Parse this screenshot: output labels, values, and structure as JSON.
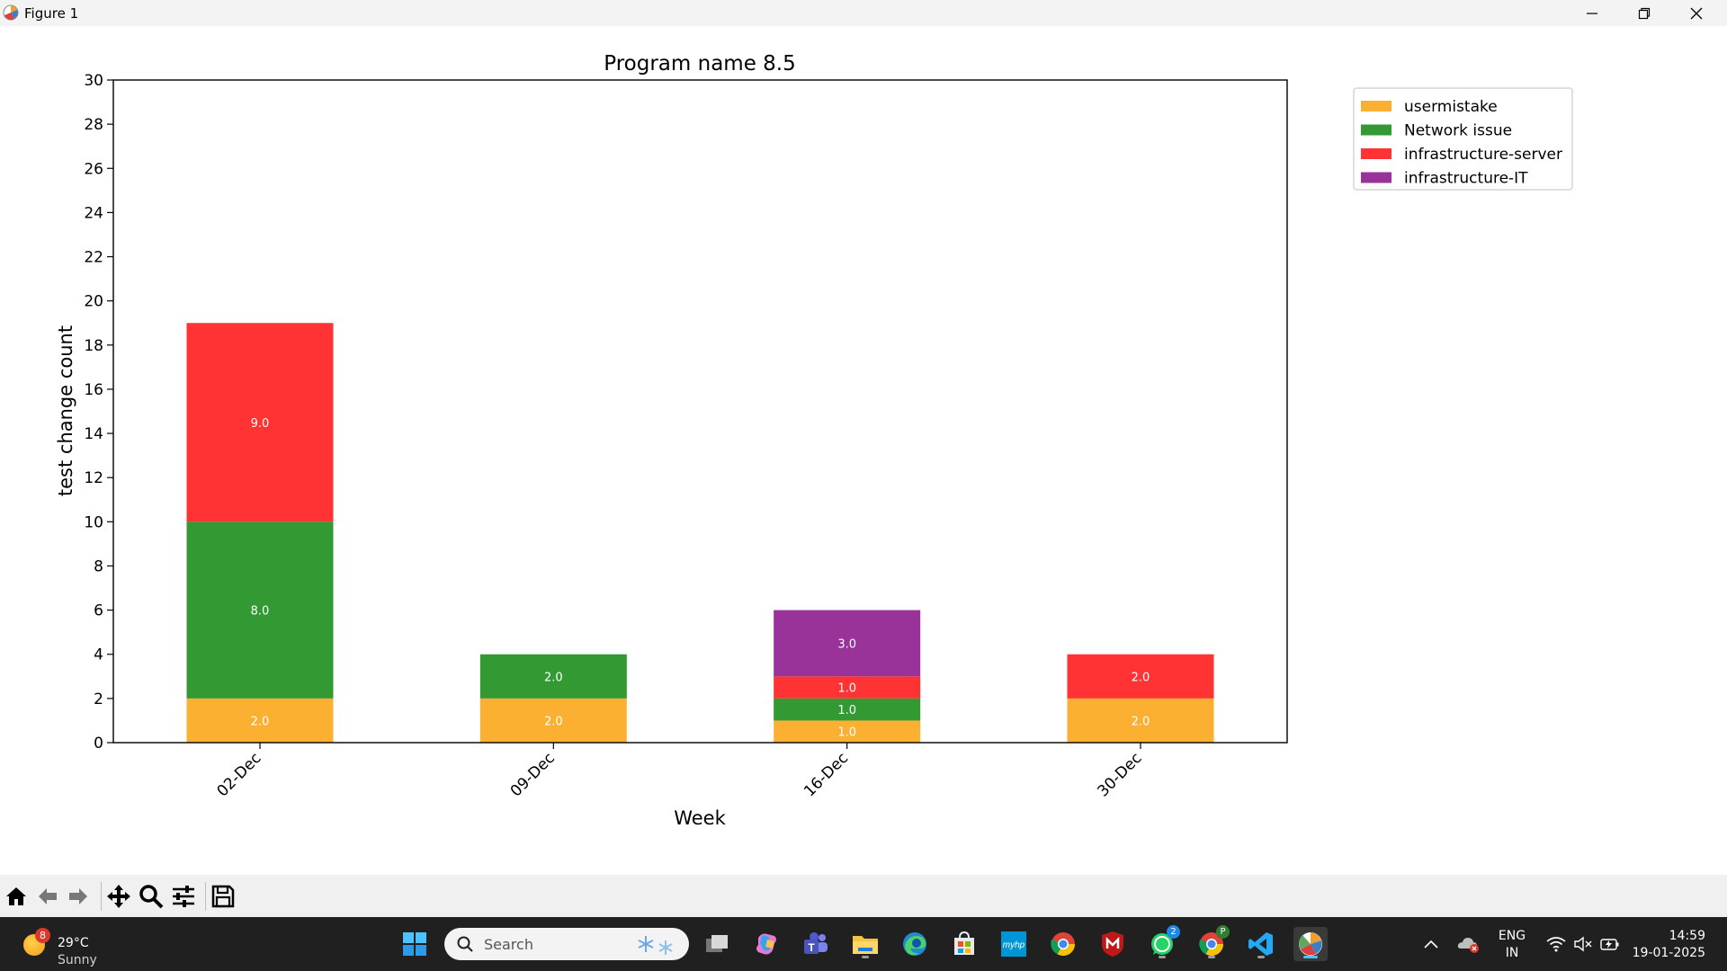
{
  "window": {
    "title": "Figure 1"
  },
  "chart_data": {
    "type": "bar",
    "stacked": true,
    "title": "Program name 8.5",
    "xlabel": "Week",
    "ylabel": "test change count",
    "ylim": [
      0,
      30
    ],
    "yticks": [
      0,
      2,
      4,
      6,
      8,
      10,
      12,
      14,
      16,
      18,
      20,
      22,
      24,
      26,
      28,
      30
    ],
    "categories": [
      "02-Dec",
      "09-Dec",
      "16-Dec",
      "30-Dec"
    ],
    "series": [
      {
        "name": "usermistake",
        "color": "#fbb032",
        "values": [
          2,
          2,
          1,
          2
        ],
        "labels": [
          "2.0",
          "2.0",
          "1.0",
          "2.0"
        ]
      },
      {
        "name": "Network issue",
        "color": "#339933",
        "values": [
          8,
          2,
          1,
          0
        ],
        "labels": [
          "8.0",
          "2.0",
          "1.0",
          ""
        ]
      },
      {
        "name": "infrastructure-server",
        "color": "#ff3333",
        "values": [
          9,
          0,
          1,
          2
        ],
        "labels": [
          "9.0",
          "",
          "1.0",
          "2.0"
        ]
      },
      {
        "name": "infrastructure-IT",
        "color": "#993399",
        "values": [
          0,
          0,
          3,
          0
        ],
        "labels": [
          "",
          "",
          "3.0",
          ""
        ]
      }
    ],
    "grid": false,
    "legend_position": "outside upper right"
  },
  "toolbar": {
    "icons": [
      "home-icon",
      "back-arrow-icon",
      "forward-arrow-icon",
      "pan-icon",
      "zoom-icon",
      "configure-subplots-icon",
      "save-icon"
    ]
  },
  "taskbar": {
    "weather": {
      "temp": "29°C",
      "condition": "Sunny",
      "badge": "8"
    },
    "search_placeholder": "Search",
    "whatsapp_badge": "2",
    "chrome_profile_badge": "P",
    "language": {
      "line1": "ENG",
      "line2": "IN"
    },
    "clock": {
      "time": "14:59",
      "date": "19-01-2025"
    }
  }
}
